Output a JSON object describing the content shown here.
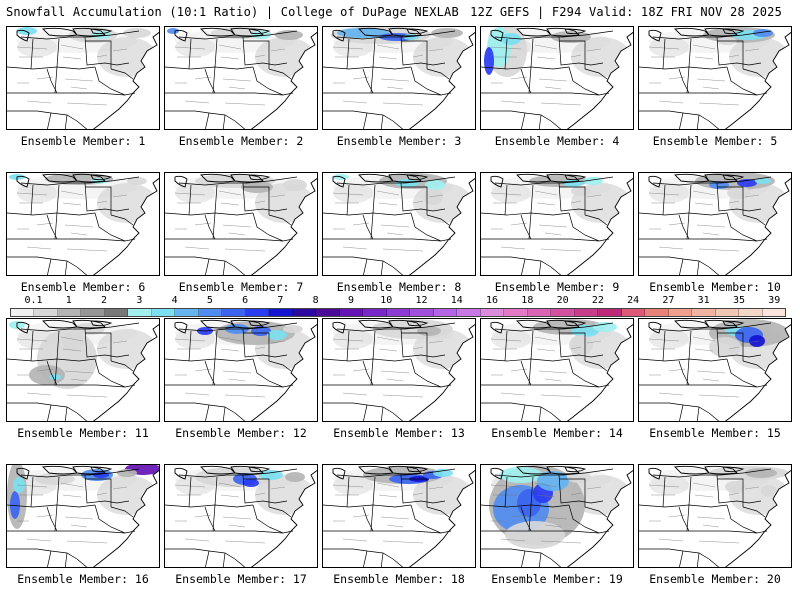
{
  "header": {
    "left": "Snowfall Accumulation (10:1 Ratio) | College of DuPage NEXLAB",
    "right": "12Z GEFS | F294 Valid: 18Z FRI NOV 28 2025"
  },
  "panels": [
    {
      "label": "Ensemble Member: 1",
      "snow_coverage": "light",
      "max_snowfall_in": 4
    },
    {
      "label": "Ensemble Member: 2",
      "snow_coverage": "light",
      "max_snowfall_in": 4
    },
    {
      "label": "Ensemble Member: 3",
      "snow_coverage": "moderate",
      "max_snowfall_in": 7
    },
    {
      "label": "Ensemble Member: 4",
      "snow_coverage": "moderate",
      "max_snowfall_in": 8
    },
    {
      "label": "Ensemble Member: 5",
      "snow_coverage": "light",
      "max_snowfall_in": 4
    },
    {
      "label": "Ensemble Member: 6",
      "snow_coverage": "light",
      "max_snowfall_in": 3
    },
    {
      "label": "Ensemble Member: 7",
      "snow_coverage": "light",
      "max_snowfall_in": 2
    },
    {
      "label": "Ensemble Member: 8",
      "snow_coverage": "light",
      "max_snowfall_in": 4
    },
    {
      "label": "Ensemble Member: 9",
      "snow_coverage": "light",
      "max_snowfall_in": 3
    },
    {
      "label": "Ensemble Member: 10",
      "snow_coverage": "moderate",
      "max_snowfall_in": 6
    },
    {
      "label": "Ensemble Member: 11",
      "snow_coverage": "light",
      "max_snowfall_in": 3
    },
    {
      "label": "Ensemble Member: 12",
      "snow_coverage": "moderate",
      "max_snowfall_in": 7
    },
    {
      "label": "Ensemble Member: 13",
      "snow_coverage": "light",
      "max_snowfall_in": 2
    },
    {
      "label": "Ensemble Member: 14",
      "snow_coverage": "light",
      "max_snowfall_in": 4
    },
    {
      "label": "Ensemble Member: 15",
      "snow_coverage": "heavy",
      "max_snowfall_in": 8
    },
    {
      "label": "Ensemble Member: 16",
      "snow_coverage": "heavy",
      "max_snowfall_in": 9
    },
    {
      "label": "Ensemble Member: 17",
      "snow_coverage": "moderate",
      "max_snowfall_in": 6
    },
    {
      "label": "Ensemble Member: 18",
      "snow_coverage": "moderate",
      "max_snowfall_in": 7
    },
    {
      "label": "Ensemble Member: 19",
      "snow_coverage": "heavy",
      "max_snowfall_in": 7
    },
    {
      "label": "Ensemble Member: 20",
      "snow_coverage": "light",
      "max_snowfall_in": 3
    }
  ],
  "colorbar": {
    "labels": [
      "0.1",
      "1",
      "2",
      "3",
      "4",
      "5",
      "6",
      "7",
      "8",
      "9",
      "10",
      "12",
      "14",
      "16",
      "18",
      "20",
      "22",
      "24",
      "27",
      "31",
      "35",
      "39"
    ],
    "colors": [
      "#f0f0f0",
      "#d8d8d8",
      "#b4b4b4",
      "#969696",
      "#787878",
      "#a0f0f0",
      "#7ce0f0",
      "#64b4f0",
      "#508cf0",
      "#3c64f0",
      "#2a3cf0",
      "#1414d2",
      "#2a0aa0",
      "#4b0a9a",
      "#6414b4",
      "#7828c8",
      "#8c3cd2",
      "#a050dc",
      "#b464e6",
      "#c878e6",
      "#dc8cdc",
      "#e678c8",
      "#dc64b4",
      "#d250a0",
      "#c83c8c",
      "#be2878",
      "#dc5a78",
      "#e68278",
      "#f0a08c",
      "#f0b4a0",
      "#f0c8b4",
      "#f5d7c8",
      "#fae6dc"
    ]
  },
  "colors": {
    "border": "#000000",
    "state_lines": "#000000",
    "county_lines": "#777777"
  }
}
